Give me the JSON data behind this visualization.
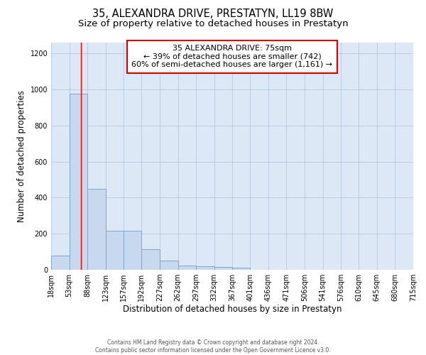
{
  "title": "35, ALEXANDRA DRIVE, PRESTATYN, LL19 8BW",
  "subtitle": "Size of property relative to detached houses in Prestatyn",
  "xlabel": "Distribution of detached houses by size in Prestatyn",
  "ylabel": "Number of detached properties",
  "bin_labels": [
    "18sqm",
    "53sqm",
    "88sqm",
    "123sqm",
    "157sqm",
    "192sqm",
    "227sqm",
    "262sqm",
    "297sqm",
    "332sqm",
    "367sqm",
    "401sqm",
    "436sqm",
    "471sqm",
    "506sqm",
    "541sqm",
    "576sqm",
    "610sqm",
    "645sqm",
    "680sqm",
    "715sqm"
  ],
  "bar_values": [
    80,
    975,
    450,
    215,
    215,
    115,
    50,
    25,
    20,
    15,
    10,
    0,
    0,
    0,
    0,
    0,
    0,
    0,
    0,
    0
  ],
  "bar_color": "#c8d8ee",
  "bar_edge_color": "#7ba8d0",
  "bar_edge_width": 0.7,
  "ylim": [
    0,
    1260
  ],
  "yticks": [
    0,
    200,
    400,
    600,
    800,
    1000,
    1200
  ],
  "red_line_x": 75,
  "bin_edges": [
    18,
    53,
    88,
    123,
    157,
    192,
    227,
    262,
    297,
    332,
    367,
    401,
    436,
    471,
    506,
    541,
    576,
    610,
    645,
    680,
    715
  ],
  "annotation_text": "35 ALEXANDRA DRIVE: 75sqm\n← 39% of detached houses are smaller (742)\n60% of semi-detached houses are larger (1,161) →",
  "annotation_box_color": "#ffffff",
  "annotation_box_edge_color": "#cc0000",
  "footer_line1": "Contains HM Land Registry data © Crown copyright and database right 2024.",
  "footer_line2": "Contains public sector information licensed under the Open Government Licence v3.0.",
  "background_color": "#ffffff",
  "plot_bg_color": "#dce8f5",
  "grid_color": "#b0c4d8",
  "title_fontsize": 10.5,
  "subtitle_fontsize": 9.5,
  "axis_label_fontsize": 8.5,
  "tick_fontsize": 7,
  "annotation_fontsize": 8,
  "footer_fontsize": 5.5
}
